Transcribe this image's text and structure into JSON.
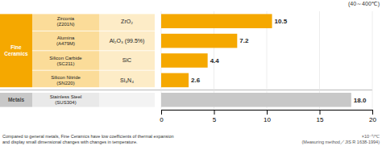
{
  "chart_data": {
    "type": "bar",
    "orientation": "horizontal",
    "categories": [
      "Zirconia\n(Z201N)",
      "Alumina\n(A479M)",
      "Silicon Carbide\n(SC211)",
      "Silicon Nitride\n(SN220)",
      "Stainless Steel\n(SUS304)"
    ],
    "category_groups": [
      "Fine\nCeramics",
      "Fine\nCeramics",
      "Fine\nCeramics",
      "Fine\nCeramics",
      "Metals"
    ],
    "formulas": [
      "ZrO₂",
      "Al₂O₃ (99.5%)",
      "SiC",
      "Si₃N₄",
      null
    ],
    "values": [
      10.5,
      7.2,
      4.4,
      2.6,
      18.0
    ],
    "value_labels": [
      "10.5",
      "7.2",
      "4.4",
      "2.6",
      "18.0"
    ],
    "data_labels": true,
    "colors": [
      "#F5A800",
      "#F5A800",
      "#F5A800",
      "#F5A800",
      "#C8C8C8"
    ],
    "xlim": [
      0,
      20
    ],
    "xticks": [
      0,
      5,
      10,
      15,
      20
    ],
    "grid": true,
    "annotations": [
      "(40～400℃)",
      "Compared to general metals, Fine Ceramics have low coefficients of thermal expansion\nand display small dimensional changes with changes in temperature.",
      "×10⁻⁶/℃\n(Measuring method／JIS R 1638-1994)"
    ]
  }
}
